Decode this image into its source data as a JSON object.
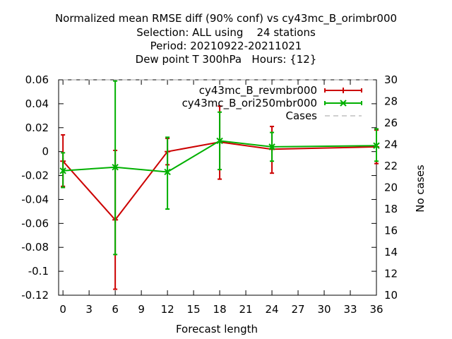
{
  "chart_data": {
    "type": "line",
    "title": [
      "Normalized mean RMSE diff (90% conf) vs cy43mc_B_orimbr000",
      "Selection: ALL using    24 stations",
      "Period: 20210922-20211021",
      "Dew point T 300hPa   Hours: {12}"
    ],
    "xlabel": "Forecast length",
    "ylabel": "",
    "y2label": "No cases",
    "xlim": [
      -0.5,
      36
    ],
    "ylim": [
      -0.12,
      0.06
    ],
    "y2lim": [
      10,
      30
    ],
    "xticks": [
      0,
      3,
      6,
      9,
      12,
      15,
      18,
      21,
      24,
      27,
      30,
      33,
      36
    ],
    "yticks": [
      -0.12,
      -0.1,
      -0.08,
      -0.06,
      -0.04,
      -0.02,
      0,
      0.02,
      0.04,
      0.06
    ],
    "ytick_labels": [
      "-0.12",
      "-0.1",
      "-0.08",
      "-0.06",
      "-0.04",
      "-0.02",
      "0",
      "0.02",
      "0.04",
      "0.06"
    ],
    "y2ticks": [
      10,
      12,
      14,
      16,
      18,
      20,
      22,
      24,
      26,
      28,
      30
    ],
    "legend_position": "top-right",
    "series": [
      {
        "name": "cy43mc_B_revmbr000",
        "color": "#cc0000",
        "marker": "plus",
        "x": [
          0,
          6,
          12,
          18,
          24,
          36
        ],
        "y": [
          -0.008,
          -0.057,
          0.0,
          0.008,
          0.002,
          0.004
        ],
        "err_low": [
          -0.029,
          -0.115,
          -0.011,
          -0.023,
          -0.018,
          -0.01
        ],
        "err_high": [
          0.014,
          0.001,
          0.011,
          0.038,
          0.021,
          0.018
        ]
      },
      {
        "name": "cy43mc_B_ori250mbr000",
        "color": "#00b000",
        "marker": "cross",
        "x": [
          0,
          6,
          12,
          18,
          24,
          36
        ],
        "y": [
          -0.016,
          -0.013,
          -0.017,
          0.009,
          0.004,
          0.005
        ],
        "err_low": [
          -0.03,
          -0.086,
          -0.048,
          -0.015,
          -0.008,
          -0.008
        ],
        "err_high": [
          -0.001,
          0.059,
          0.012,
          0.033,
          0.016,
          0.019
        ]
      },
      {
        "name": "Cases",
        "color": "#a0a0a0",
        "dashed": true,
        "axis": "y2",
        "x": [
          0,
          6,
          12,
          18,
          24,
          36
        ],
        "y": [
          30,
          30,
          30,
          30,
          30,
          30
        ]
      }
    ]
  }
}
